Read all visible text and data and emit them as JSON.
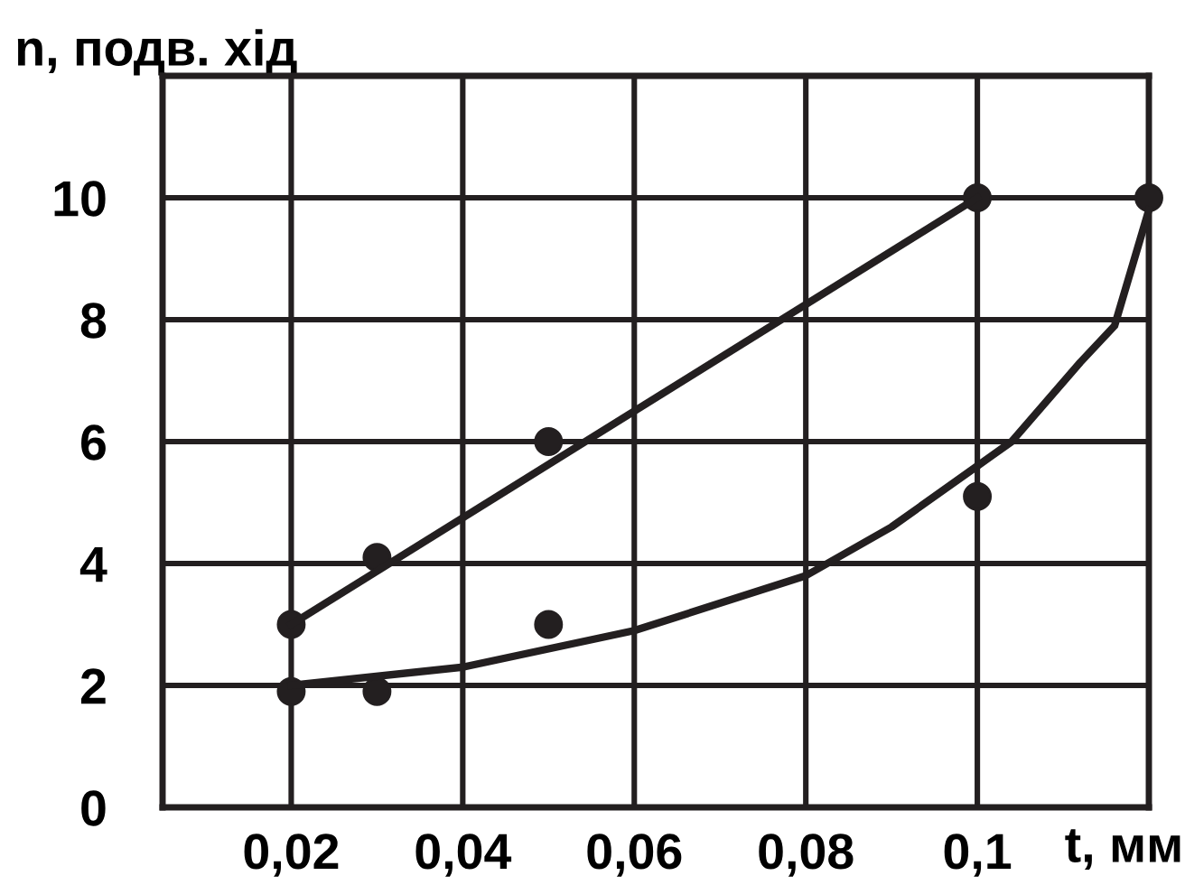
{
  "chart_data": {
    "type": "scatter",
    "ylabel": "n, подв. хід",
    "xlabel": "t, мм",
    "xlim": [
      0.005,
      0.12
    ],
    "xticks": [
      {
        "value": 0.02,
        "label": "0,02"
      },
      {
        "value": 0.04,
        "label": "0,04"
      },
      {
        "value": 0.06,
        "label": "0,06"
      },
      {
        "value": 0.08,
        "label": "0,08"
      },
      {
        "value": 0.1,
        "label": "0,1"
      }
    ],
    "ylim": [
      0,
      12
    ],
    "yticks": [
      {
        "value": 0,
        "label": "0"
      },
      2,
      4,
      6,
      8,
      10
    ],
    "grid": true,
    "marker": "circle",
    "series": [
      {
        "color": "#231f20",
        "x": [
          0.02,
          0.03,
          0.05,
          0.1
        ],
        "values": [
          3.0,
          4.1,
          6.0,
          10.0
        ]
      },
      {
        "color": "#231f20",
        "x": [
          0.02,
          0.03,
          0.05,
          0.1,
          0.12
        ],
        "values": [
          1.9,
          1.9,
          3.0,
          5.1,
          10.0
        ]
      },
      {
        "type": "line",
        "color": "#231f20",
        "marker": "none",
        "x": [
          0.02,
          0.1
        ],
        "values": [
          3.0,
          10.0
        ]
      },
      {
        "type": "line",
        "color": "#231f20",
        "marker": "none",
        "x": [
          0.02,
          0.04,
          0.06,
          0.08,
          0.09,
          0.1,
          0.104,
          0.112,
          0.116,
          0.12
        ],
        "values": [
          2.0,
          2.3,
          2.9,
          3.8,
          4.6,
          5.6,
          6.0,
          7.3,
          7.9,
          9.8
        ]
      }
    ]
  }
}
